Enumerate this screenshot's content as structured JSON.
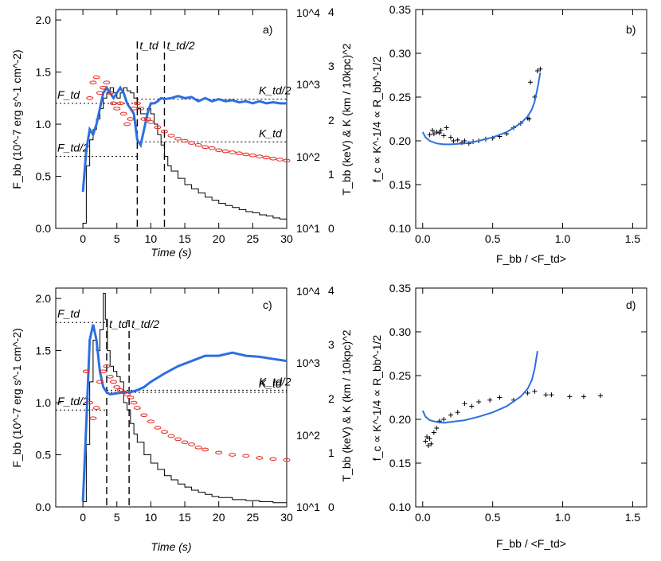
{
  "chart_data": [
    {
      "panel": "a)",
      "type": "line",
      "xlabel": "Time (s)",
      "ylabel": "F_bb (10^-7 erg s^-1 cm^-2)",
      "ylabel_right_outer": "T_bb (keV) & K (km / 10kpc)^2",
      "xlim": [
        -4,
        30
      ],
      "ylim": [
        0,
        2.1
      ],
      "xticks": [
        "0",
        "5",
        "10",
        "15",
        "20",
        "25",
        "30"
      ],
      "yticks": [
        "0.0",
        "0.5",
        "1.0",
        "1.5",
        "2.0"
      ],
      "log_axis_ticks": [
        "10^1",
        "10^2",
        "10^3",
        "10^4"
      ],
      "temp_axis_ticks": [
        "0",
        "1",
        "2",
        "3",
        "4"
      ],
      "markers": [
        {
          "label": "t_td",
          "x": 8
        },
        {
          "label": "t_td/2",
          "x": 12
        }
      ],
      "levels": [
        {
          "label": "F_td",
          "y": 1.2
        },
        {
          "label": "F_td/2",
          "y": 0.69
        },
        {
          "label": "K_td/2",
          "y": 1.24
        },
        {
          "label": "K_td",
          "y": 0.83
        }
      ],
      "series": [
        {
          "name": "F_bb",
          "color": "#000000",
          "x": [
            0,
            0.5,
            1,
            1.5,
            2,
            2.5,
            3,
            3.5,
            4,
            4.5,
            5,
            5.5,
            6,
            6.5,
            7,
            7.5,
            8,
            8.5,
            9,
            9.5,
            10,
            10.5,
            11,
            11.5,
            12,
            12.5,
            13,
            14,
            15,
            16,
            17,
            18,
            19,
            20,
            21,
            22,
            23,
            24,
            25,
            26,
            27,
            28,
            29,
            30
          ],
          "y": [
            0.05,
            0.6,
            0.85,
            0.95,
            1.05,
            1.15,
            1.25,
            1.3,
            1.35,
            1.3,
            1.25,
            1.3,
            1.35,
            1.32,
            1.3,
            1.25,
            1.15,
            1.1,
            1.1,
            1.15,
            1.1,
            1.0,
            0.9,
            0.8,
            0.69,
            0.6,
            0.55,
            0.48,
            0.42,
            0.38,
            0.34,
            0.3,
            0.27,
            0.24,
            0.22,
            0.2,
            0.18,
            0.16,
            0.15,
            0.13,
            0.12,
            0.1,
            0.09,
            0.08
          ]
        },
        {
          "name": "K",
          "color": "#2d6fe0",
          "x": [
            0,
            0.5,
            1,
            1.5,
            2,
            2.5,
            3,
            3.5,
            4,
            4.5,
            5,
            5.5,
            6,
            6.5,
            7,
            7.5,
            8,
            8.5,
            9,
            9.5,
            10,
            10.5,
            11,
            11.5,
            12,
            13,
            14,
            15,
            16,
            17,
            18,
            19,
            20,
            21,
            22,
            23,
            24,
            25,
            26,
            27,
            28,
            29,
            30
          ],
          "y": [
            0.35,
            0.75,
            0.95,
            0.9,
            1.0,
            1.15,
            1.3,
            1.35,
            1.3,
            1.25,
            1.3,
            1.35,
            1.3,
            1.2,
            1.15,
            1.1,
            0.85,
            0.8,
            0.95,
            1.1,
            1.2,
            1.2,
            1.22,
            1.25,
            1.24,
            1.25,
            1.27,
            1.25,
            1.26,
            1.22,
            1.25,
            1.22,
            1.24,
            1.22,
            1.23,
            1.21,
            1.22,
            1.2,
            1.22,
            1.2,
            1.21,
            1.2,
            1.2
          ]
        },
        {
          "name": "T_bb",
          "color": "#e8261e",
          "x": [
            1,
            1.5,
            2,
            2.5,
            3,
            3.5,
            4,
            4.5,
            5,
            5.5,
            6,
            6.5,
            7,
            7.5,
            8,
            8.5,
            9,
            9.5,
            10,
            11,
            12,
            13,
            14,
            15,
            16,
            17,
            18,
            19,
            20,
            21,
            22,
            23,
            24,
            25,
            26,
            27,
            28,
            29,
            30
          ],
          "y": [
            1.25,
            1.4,
            1.45,
            1.3,
            1.35,
            1.4,
            1.3,
            1.2,
            1.15,
            1.2,
            1.1,
            1.0,
            1.05,
            1.15,
            1.2,
            1.15,
            1.05,
            1.05,
            1.02,
            0.97,
            0.93,
            0.89,
            0.86,
            0.84,
            0.82,
            0.8,
            0.78,
            0.77,
            0.75,
            0.74,
            0.73,
            0.72,
            0.71,
            0.7,
            0.69,
            0.68,
            0.67,
            0.66,
            0.65
          ]
        }
      ]
    },
    {
      "panel": "b)",
      "type": "scatter",
      "xlabel": "F_bb / <F_td>",
      "ylabel": "f_c ∝ K^-1/4 ∝ R_bb^-1/2",
      "xlim": [
        -0.05,
        1.6
      ],
      "ylim": [
        0.1,
        0.35
      ],
      "xticks": [
        "0.0",
        "0.5",
        "1.0",
        "1.5"
      ],
      "yticks": [
        "0.10",
        "0.15",
        "0.20",
        "0.25",
        "0.30",
        "0.35"
      ],
      "series": [
        {
          "name": "data",
          "color": "#000000",
          "x": [
            0.05,
            0.07,
            0.08,
            0.1,
            0.12,
            0.13,
            0.15,
            0.17,
            0.2,
            0.22,
            0.25,
            0.28,
            0.3,
            0.33,
            0.36,
            0.4,
            0.45,
            0.5,
            0.55,
            0.6,
            0.65,
            0.7,
            0.75,
            0.76,
            0.77,
            0.8,
            0.82,
            0.84
          ],
          "y": [
            0.207,
            0.212,
            0.208,
            0.21,
            0.209,
            0.212,
            0.206,
            0.215,
            0.204,
            0.2,
            0.201,
            0.198,
            0.2,
            0.197,
            0.199,
            0.2,
            0.202,
            0.203,
            0.205,
            0.208,
            0.215,
            0.22,
            0.226,
            0.225,
            0.267,
            0.25,
            0.28,
            0.282
          ]
        },
        {
          "name": "model",
          "color": "#2d6fe0",
          "x": [
            0.0,
            0.02,
            0.05,
            0.1,
            0.15,
            0.2,
            0.3,
            0.4,
            0.5,
            0.6,
            0.7,
            0.75,
            0.78,
            0.8,
            0.82,
            0.84
          ],
          "y": [
            0.21,
            0.204,
            0.2,
            0.197,
            0.196,
            0.196,
            0.197,
            0.2,
            0.204,
            0.21,
            0.22,
            0.228,
            0.236,
            0.245,
            0.26,
            0.278
          ]
        }
      ]
    },
    {
      "panel": "c)",
      "type": "line",
      "xlabel": "Time (s)",
      "ylabel": "F_bb (10^-7 erg s^-1 cm^-2)",
      "ylabel_right_outer": "T_bb (keV) & K (km / 10kpc)^2",
      "xlim": [
        -4,
        30
      ],
      "ylim": [
        0,
        2.1
      ],
      "xticks": [
        "0",
        "5",
        "10",
        "15",
        "20",
        "25",
        "30"
      ],
      "yticks": [
        "0.0",
        "0.5",
        "1.0",
        "1.5",
        "2.0"
      ],
      "log_axis_ticks": [
        "10^1",
        "10^2",
        "10^3",
        "10^4"
      ],
      "temp_axis_ticks": [
        "0",
        "1",
        "2",
        "3",
        "4"
      ],
      "markers": [
        {
          "label": "t_td",
          "x": 3.5
        },
        {
          "label": "t_td/2",
          "x": 6.8
        }
      ],
      "levels": [
        {
          "label": "F_td",
          "y": 1.77
        },
        {
          "label": "F_td/2",
          "y": 0.93
        },
        {
          "label": "K_td/2",
          "y": 1.12
        },
        {
          "label": "K_td",
          "y": 1.1
        }
      ],
      "series": [
        {
          "name": "F_bb",
          "color": "#000000",
          "x": [
            0,
            0.5,
            1,
            1.5,
            2,
            2.5,
            3,
            3.3,
            3.6,
            4,
            4.5,
            5,
            5.5,
            6,
            6.5,
            7,
            7.5,
            8,
            9,
            10,
            11,
            12,
            13,
            14,
            15,
            16,
            17,
            18,
            19,
            20,
            22,
            24,
            26,
            28,
            30
          ],
          "y": [
            0.05,
            0.6,
            1.2,
            1.6,
            1.5,
            1.7,
            2.05,
            1.8,
            1.5,
            1.35,
            1.3,
            1.25,
            1.2,
            1.0,
            0.93,
            0.8,
            0.7,
            0.62,
            0.5,
            0.42,
            0.36,
            0.3,
            0.26,
            0.22,
            0.19,
            0.16,
            0.14,
            0.12,
            0.1,
            0.09,
            0.07,
            0.06,
            0.05,
            0.04,
            0.03
          ]
        },
        {
          "name": "K",
          "color": "#2d6fe0",
          "x": [
            0,
            0.5,
            1,
            1.5,
            2,
            2.5,
            3,
            3.5,
            4,
            5,
            6,
            7,
            8,
            9,
            10,
            12,
            14,
            16,
            18,
            20,
            22,
            24,
            26,
            28,
            30
          ],
          "y": [
            0.05,
            0.8,
            1.6,
            1.75,
            1.6,
            1.3,
            1.15,
            1.1,
            1.08,
            1.09,
            1.1,
            1.1,
            1.12,
            1.15,
            1.2,
            1.28,
            1.35,
            1.4,
            1.45,
            1.45,
            1.48,
            1.45,
            1.44,
            1.42,
            1.4
          ]
        },
        {
          "name": "T_bb",
          "color": "#e8261e",
          "x": [
            0.5,
            1,
            1.5,
            2,
            2.5,
            3,
            3.5,
            4,
            4.5,
            5,
            5.5,
            6,
            6.5,
            7,
            7.5,
            8,
            9,
            10,
            11,
            12,
            13,
            14,
            15,
            16,
            17,
            18,
            20,
            22,
            24,
            26,
            28,
            30
          ],
          "y": [
            1.3,
            1.0,
            0.85,
            0.95,
            1.2,
            1.3,
            1.35,
            1.25,
            1.2,
            1.15,
            1.12,
            1.1,
            1.08,
            1.05,
            1.0,
            0.95,
            0.88,
            0.82,
            0.76,
            0.72,
            0.68,
            0.65,
            0.62,
            0.6,
            0.57,
            0.55,
            0.52,
            0.5,
            0.49,
            0.47,
            0.46,
            0.45
          ]
        }
      ]
    },
    {
      "panel": "d)",
      "type": "scatter",
      "xlabel": "F_bb / <F_td>",
      "ylabel": "f_c ∝ K^-1/4 ∝ R_bb^-1/2",
      "xlim": [
        -0.05,
        1.6
      ],
      "ylim": [
        0.1,
        0.35
      ],
      "xticks": [
        "0.0",
        "0.5",
        "1.0",
        "1.5"
      ],
      "yticks": [
        "0.10",
        "0.15",
        "0.20",
        "0.25",
        "0.30",
        "0.35"
      ],
      "series": [
        {
          "name": "data",
          "color": "#000000",
          "x": [
            0.02,
            0.03,
            0.04,
            0.05,
            0.06,
            0.08,
            0.1,
            0.12,
            0.15,
            0.2,
            0.25,
            0.3,
            0.35,
            0.4,
            0.48,
            0.55,
            0.65,
            0.75,
            0.8,
            0.88,
            0.92,
            1.05,
            1.15,
            1.27
          ],
          "y": [
            0.175,
            0.18,
            0.17,
            0.178,
            0.172,
            0.185,
            0.19,
            0.198,
            0.2,
            0.205,
            0.208,
            0.218,
            0.215,
            0.22,
            0.222,
            0.225,
            0.222,
            0.23,
            0.232,
            0.228,
            0.228,
            0.226,
            0.226,
            0.227
          ]
        },
        {
          "name": "model",
          "color": "#2d6fe0",
          "x": [
            0.0,
            0.02,
            0.05,
            0.1,
            0.15,
            0.2,
            0.3,
            0.4,
            0.5,
            0.6,
            0.7,
            0.75,
            0.78,
            0.8,
            0.82
          ],
          "y": [
            0.21,
            0.203,
            0.199,
            0.197,
            0.196,
            0.197,
            0.199,
            0.203,
            0.208,
            0.215,
            0.226,
            0.235,
            0.245,
            0.258,
            0.278
          ]
        }
      ]
    }
  ]
}
